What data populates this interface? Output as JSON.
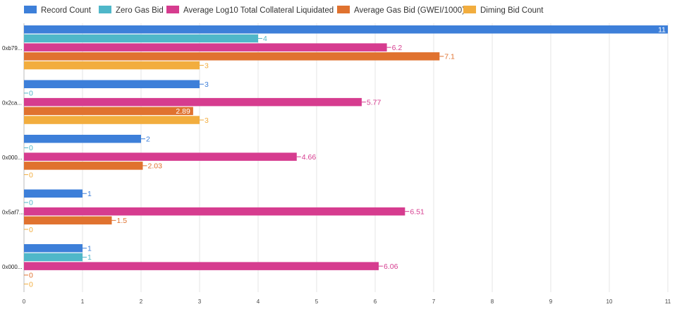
{
  "chart_data": {
    "type": "bar",
    "orientation": "horizontal",
    "title": "",
    "xlabel": "",
    "ylabel": "",
    "xlim": [
      0,
      11
    ],
    "ticks": [
      "0",
      "1",
      "2",
      "3",
      "4",
      "5",
      "6",
      "7",
      "8",
      "9",
      "10",
      "11"
    ],
    "grid": true,
    "legend_position": "top-left",
    "categories": [
      "0xb79...",
      "0x2ca...",
      "0x000...",
      "0x5af7...",
      "0x000..."
    ],
    "series": [
      {
        "name": "Record Count",
        "color": "#3d7fd9",
        "values": [
          11,
          3,
          2,
          1,
          1
        ],
        "labels": [
          "11",
          "3",
          "2",
          "1",
          "1"
        ]
      },
      {
        "name": "Zero Gas Bid",
        "color": "#4fb7c9",
        "values": [
          4,
          0,
          0,
          0,
          1
        ],
        "labels": [
          "4",
          "0",
          "0",
          "0",
          "1"
        ]
      },
      {
        "name": "Average Log10 Total Collateral Liquidated",
        "color": "#d63c8f",
        "values": [
          6.2,
          5.77,
          4.66,
          6.51,
          6.06
        ],
        "labels": [
          "6.2",
          "5.77",
          "4.66",
          "6.51",
          "6.06"
        ]
      },
      {
        "name": "Average Gas Bid (GWEI/1000)",
        "color": "#e0722f",
        "values": [
          7.1,
          2.89,
          2.03,
          1.5,
          0
        ],
        "labels": [
          "7.1",
          "2.89",
          "2.03",
          "1.5",
          "0"
        ]
      },
      {
        "name": "Diming Bid Count",
        "color": "#f2ad3e",
        "values": [
          3,
          3,
          0,
          0,
          0
        ],
        "labels": [
          "3",
          "3",
          "0",
          "0",
          "0"
        ]
      }
    ]
  }
}
